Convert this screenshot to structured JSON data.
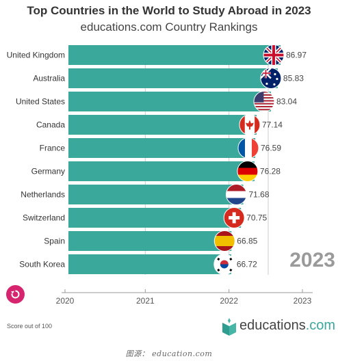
{
  "title": "Top Countries in the World to Study Abroad in 2023",
  "subtitle": "educations.com Country Rankings",
  "current_year_label": "2023",
  "footnote": "Score out of 100",
  "brand": {
    "name": "educations",
    "suffix": ".com"
  },
  "source": "图源： education.com",
  "colors": {
    "bar": "#3aa89a",
    "replay": "#d6246e",
    "grid": "#cccccc"
  },
  "chart_data": {
    "type": "bar",
    "orientation": "horizontal",
    "categories": [
      "United Kingdom",
      "Australia",
      "United States",
      "Canada",
      "France",
      "Germany",
      "Netherlands",
      "Switzerland",
      "Spain",
      "South Korea"
    ],
    "values": [
      86.97,
      85.83,
      83.04,
      77.14,
      76.59,
      76.28,
      71.68,
      70.75,
      66.85,
      66.72
    ],
    "value_labels": [
      "86.97",
      "85.83",
      "83.04",
      "77.14",
      "76.59",
      "76.28",
      "71.68",
      "70.75",
      "66.85",
      "66.72"
    ],
    "flags": [
      "uk",
      "australia",
      "usa",
      "canada",
      "france",
      "germany",
      "netherlands",
      "switzerland",
      "spain",
      "south-korea"
    ],
    "timeline_ticks": [
      "2020",
      "2021",
      "2022",
      "2023"
    ],
    "grid": true
  }
}
